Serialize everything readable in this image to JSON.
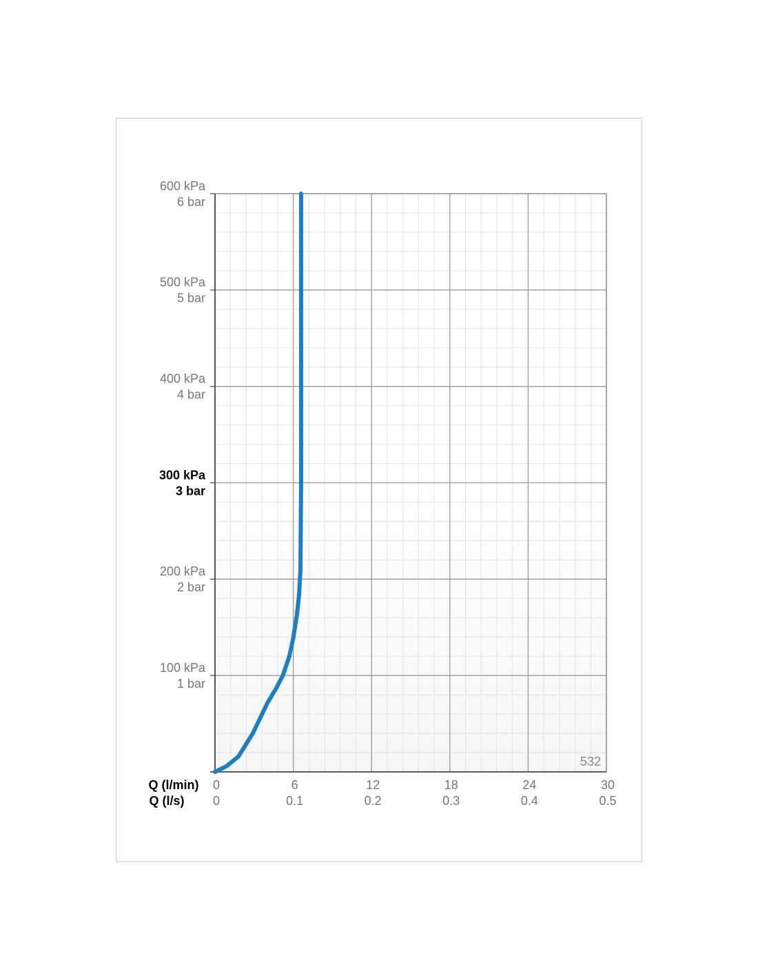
{
  "chart_data": {
    "type": "line",
    "x_label": "Q (l/min)",
    "x2_label": "Q (l/s)",
    "annotation": "532",
    "xlim": [
      0,
      30
    ],
    "xticks": [
      0,
      6,
      12,
      18,
      24,
      30
    ],
    "x2lim": [
      0,
      0.5
    ],
    "x2ticks": [
      0,
      0.1,
      0.2,
      0.3,
      0.4,
      0.5
    ],
    "ylim": [
      0,
      600
    ],
    "yticks": [
      {
        "value": 100,
        "label": "100 kPa"
      },
      {
        "value": 200,
        "label": "200 kPa"
      },
      {
        "value": 300,
        "label": "300 kPa"
      },
      {
        "value": 400,
        "label": "400 kPa"
      },
      {
        "value": 500,
        "label": "500 kPa"
      },
      {
        "value": 600,
        "label": "600 kPa"
      }
    ],
    "y2lim": [
      0,
      6
    ],
    "y2ticks": [
      {
        "value": 1,
        "label": "1 bar"
      },
      {
        "value": 2,
        "label": "2 bar"
      },
      {
        "value": 3,
        "label": "3 bar"
      },
      {
        "value": 4,
        "label": "4 bar"
      },
      {
        "value": 5,
        "label": "5 bar"
      },
      {
        "value": 6,
        "label": "6 bar"
      }
    ],
    "bold_yticks": [
      300
    ],
    "grid": true,
    "minor_xstep": 1.2,
    "minor_ystep": 20,
    "series": [
      {
        "color": "#1a7fc9",
        "x": [
          0,
          0.9,
          1.8,
          2.9,
          4.0,
          4.7,
          5.2,
          5.7,
          6.0,
          6.3,
          6.45,
          6.55,
          6.6,
          6.6
        ],
        "values": [
          0,
          6,
          16,
          40,
          71,
          87,
          100,
          120,
          139,
          165,
          185,
          210,
          300,
          600
        ]
      }
    ]
  }
}
